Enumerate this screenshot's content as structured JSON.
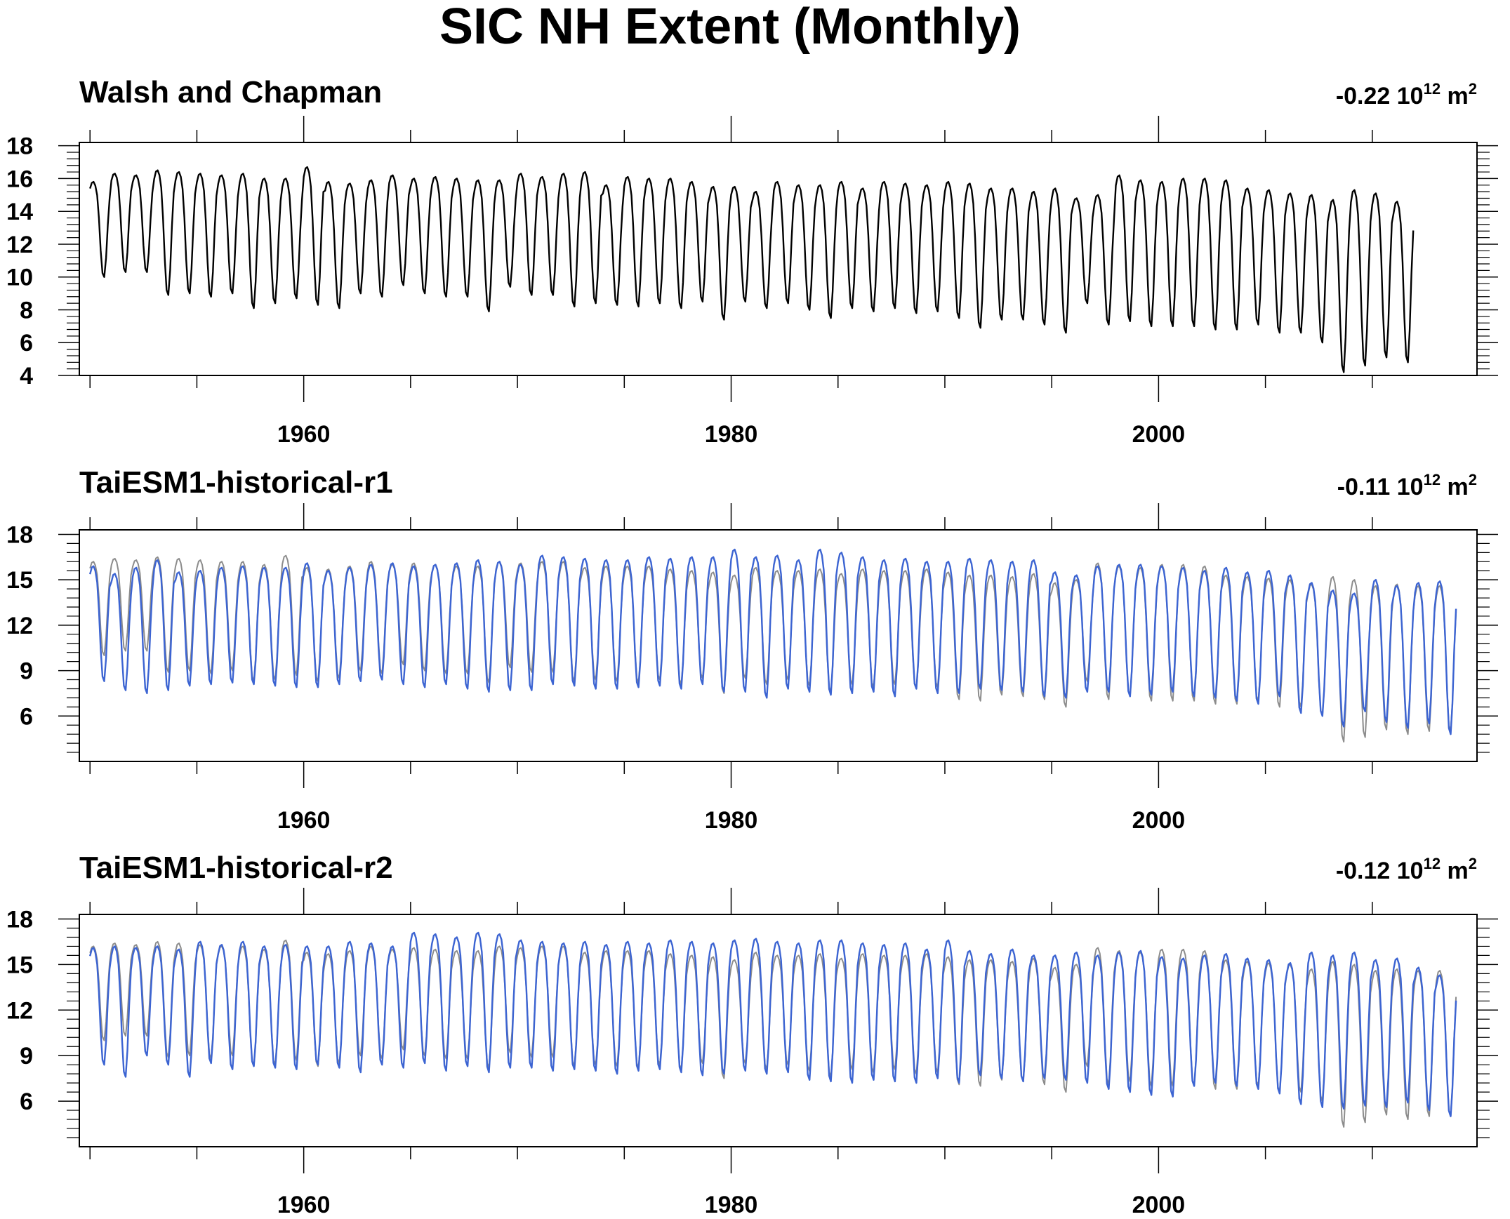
{
  "title": "SIC NH Extent (Monthly)",
  "colors": {
    "obs": "#000000",
    "ref": "#8c8c8c",
    "model": "#3c64d2"
  },
  "chart_data": [
    {
      "type": "line",
      "panel_title": "Walsh and Chapman",
      "trend": {
        "value": "-0.22",
        "base": "10",
        "exp": "12",
        "unit": "m",
        "unit_exp": "2"
      },
      "xlim": [
        1949.5,
        2014.9
      ],
      "ylim": [
        4,
        18.2
      ],
      "yticks": [
        4,
        6,
        8,
        10,
        12,
        14,
        16,
        18
      ],
      "xticks": [
        1960,
        1980,
        2000
      ],
      "series": [
        {
          "role": "obs",
          "x_start": 1950,
          "x_end": 2014,
          "max": [
            15.8,
            16.3,
            16.2,
            16.5,
            16.4,
            16.3,
            16.2,
            16.3,
            16.0,
            16.0,
            16.7,
            15.8,
            15.7,
            15.9,
            16.2,
            16.0,
            16.1,
            16.0,
            15.9,
            15.9,
            16.3,
            16.1,
            16.3,
            16.4,
            15.6,
            16.1,
            16.0,
            16.0,
            15.8,
            15.5,
            15.5,
            15.2,
            15.8,
            15.6,
            15.6,
            15.8,
            15.4,
            15.8,
            15.7,
            15.6,
            15.8,
            15.7,
            15.4,
            15.4,
            15.2,
            15.4,
            14.8,
            15.0,
            16.2,
            15.9,
            15.8,
            16.0,
            16.0,
            15.9,
            15.4,
            15.3,
            15.1,
            15.0,
            14.7,
            15.3,
            15.1,
            14.6
          ],
          "min": [
            10.0,
            10.3,
            10.3,
            8.9,
            9.0,
            8.8,
            9.0,
            8.1,
            8.4,
            8.7,
            8.3,
            8.1,
            9.0,
            8.8,
            9.5,
            9.0,
            8.8,
            8.8,
            7.9,
            9.4,
            8.9,
            8.9,
            8.2,
            8.4,
            8.3,
            8.2,
            8.4,
            8.1,
            8.5,
            7.4,
            8.5,
            8.1,
            8.4,
            8.0,
            7.5,
            8.1,
            7.9,
            8.1,
            7.8,
            7.9,
            7.5,
            6.9,
            7.4,
            7.4,
            7.1,
            6.6,
            8.4,
            7.1,
            7.3,
            7.0,
            7.0,
            7.0,
            6.8,
            6.8,
            7.1,
            6.6,
            6.6,
            6.0,
            4.2,
            4.6,
            5.1,
            4.8
          ]
        }
      ]
    },
    {
      "type": "line",
      "panel_title": "TaiESM1-historical-r1",
      "trend": {
        "value": "-0.11",
        "base": "10",
        "exp": "12",
        "unit": "m",
        "unit_exp": "2"
      },
      "xlim": [
        1949.5,
        2014.9
      ],
      "ylim": [
        3,
        18.3
      ],
      "yticks": [
        6,
        9,
        12,
        15,
        18
      ],
      "xticks": [
        1960,
        1980,
        2000
      ],
      "series": [
        {
          "role": "ref",
          "x_start": 1950,
          "x_end": 2014,
          "max": [
            16.2,
            16.4,
            16.3,
            16.5,
            16.4,
            16.3,
            16.2,
            16.2,
            16.0,
            16.6,
            15.8,
            15.7,
            15.9,
            16.2,
            16.0,
            16.1,
            16.0,
            15.9,
            15.9,
            16.2,
            16.1,
            16.2,
            16.2,
            15.8,
            15.9,
            15.9,
            15.9,
            15.7,
            15.6,
            15.5,
            15.3,
            15.8,
            15.6,
            15.6,
            15.7,
            15.4,
            15.7,
            15.6,
            15.6,
            15.7,
            15.5,
            15.3,
            15.3,
            15.2,
            15.4,
            14.8,
            15.0,
            16.1,
            15.9,
            15.8,
            16.0,
            16.0,
            15.9,
            15.3,
            15.2,
            15.1,
            15.0,
            14.7,
            15.2,
            15.0,
            14.6,
            14.7,
            14.6,
            14.6
          ],
          "min": [
            10.0,
            10.3,
            10.3,
            8.9,
            9.0,
            8.8,
            9.0,
            8.3,
            8.4,
            8.7,
            8.3,
            8.5,
            9.0,
            8.8,
            9.4,
            9.0,
            8.8,
            8.8,
            8.2,
            9.2,
            8.9,
            8.9,
            8.3,
            8.4,
            8.3,
            8.2,
            8.4,
            8.1,
            8.5,
            7.5,
            8.5,
            8.1,
            8.4,
            8.0,
            7.6,
            8.1,
            7.9,
            8.1,
            7.8,
            7.9,
            7.1,
            7.0,
            7.4,
            7.3,
            7.1,
            6.6,
            8.3,
            7.1,
            7.3,
            7.0,
            7.0,
            7.0,
            6.8,
            6.8,
            7.0,
            6.6,
            6.6,
            6.0,
            4.3,
            4.6,
            5.1,
            4.8,
            5.0,
            5.0
          ]
        },
        {
          "role": "model",
          "x_start": 1950,
          "x_end": 2014,
          "max": [
            15.9,
            15.4,
            15.8,
            16.3,
            15.5,
            15.6,
            15.8,
            15.9,
            15.8,
            15.8,
            16.1,
            15.6,
            15.8,
            16.0,
            16.1,
            15.9,
            16.0,
            16.1,
            16.3,
            16.2,
            16.0,
            16.6,
            16.5,
            16.4,
            16.3,
            16.3,
            16.5,
            16.4,
            16.5,
            16.5,
            17.0,
            16.5,
            16.6,
            16.3,
            17.0,
            16.8,
            16.5,
            16.3,
            16.4,
            16.2,
            16.2,
            16.4,
            16.3,
            16.2,
            16.3,
            15.5,
            15.3,
            15.9,
            16.0,
            16.0,
            15.9,
            15.8,
            15.6,
            15.8,
            15.5,
            15.6,
            15.3,
            14.8,
            14.3,
            14.1,
            15.0,
            14.6,
            14.8,
            14.9
          ],
          "min": [
            8.3,
            7.7,
            7.5,
            7.7,
            8.0,
            8.1,
            8.2,
            8.1,
            8.0,
            7.9,
            7.9,
            8.1,
            8.3,
            8.4,
            8.1,
            7.9,
            8.1,
            7.8,
            7.6,
            7.7,
            7.7,
            8.1,
            8.0,
            7.8,
            7.8,
            7.9,
            8.0,
            7.8,
            8.1,
            7.6,
            7.6,
            7.2,
            7.8,
            7.6,
            7.4,
            7.5,
            7.6,
            7.3,
            7.8,
            7.5,
            7.5,
            7.8,
            7.7,
            7.6,
            7.3,
            7.2,
            7.6,
            7.6,
            7.3,
            7.4,
            7.6,
            7.3,
            7.2,
            7.0,
            6.8,
            7.3,
            6.2,
            6.0,
            5.3,
            6.3,
            5.6,
            5.2,
            5.5,
            4.8
          ]
        }
      ]
    },
    {
      "type": "line",
      "panel_title": "TaiESM1-historical-r2",
      "trend": {
        "value": "-0.12",
        "base": "10",
        "exp": "12",
        "unit": "m",
        "unit_exp": "2"
      },
      "xlim": [
        1949.5,
        2014.9
      ],
      "ylim": [
        3,
        18.3
      ],
      "yticks": [
        6,
        9,
        12,
        15,
        18
      ],
      "xticks": [
        1960,
        1980,
        2000
      ],
      "series": [
        {
          "role": "ref",
          "x_start": 1950,
          "x_end": 2014,
          "max": [
            16.2,
            16.4,
            16.3,
            16.5,
            16.4,
            16.3,
            16.2,
            16.2,
            16.0,
            16.6,
            15.8,
            15.7,
            15.9,
            16.2,
            16.0,
            16.1,
            16.0,
            15.9,
            15.9,
            16.2,
            16.1,
            16.2,
            16.2,
            15.8,
            15.9,
            15.9,
            15.9,
            15.7,
            15.6,
            15.5,
            15.3,
            15.8,
            15.6,
            15.6,
            15.7,
            15.4,
            15.7,
            15.6,
            15.6,
            15.7,
            15.5,
            15.3,
            15.3,
            15.2,
            15.4,
            14.8,
            15.0,
            16.1,
            15.9,
            15.8,
            16.0,
            16.0,
            15.9,
            15.3,
            15.2,
            15.1,
            15.0,
            14.7,
            15.2,
            15.0,
            14.6,
            14.7,
            14.6,
            14.6
          ],
          "min": [
            10.0,
            10.3,
            10.3,
            8.9,
            9.0,
            8.8,
            9.0,
            8.3,
            8.4,
            8.7,
            8.3,
            8.5,
            9.0,
            8.8,
            9.4,
            9.0,
            8.8,
            8.8,
            8.2,
            9.2,
            8.9,
            8.9,
            8.3,
            8.4,
            8.3,
            8.2,
            8.4,
            8.1,
            8.5,
            7.5,
            8.5,
            8.1,
            8.4,
            8.0,
            7.6,
            8.1,
            7.9,
            8.1,
            7.8,
            7.9,
            7.1,
            7.0,
            7.4,
            7.3,
            7.1,
            6.6,
            8.3,
            7.1,
            7.3,
            7.0,
            7.0,
            7.0,
            6.8,
            6.8,
            7.0,
            6.6,
            6.6,
            6.0,
            4.3,
            4.6,
            5.1,
            4.8,
            5.0,
            5.0
          ]
        },
        {
          "role": "model",
          "x_start": 1950,
          "x_end": 2014,
          "max": [
            16.1,
            16.2,
            16.1,
            16.2,
            16.0,
            16.5,
            16.3,
            16.5,
            16.2,
            16.3,
            16.2,
            16.2,
            16.5,
            16.4,
            16.2,
            17.1,
            17.0,
            16.8,
            17.1,
            17.0,
            16.6,
            16.5,
            16.4,
            16.5,
            16.3,
            16.5,
            16.4,
            16.6,
            16.5,
            16.4,
            16.6,
            16.7,
            16.5,
            16.4,
            16.6,
            16.6,
            16.4,
            16.3,
            16.4,
            16.0,
            16.6,
            15.9,
            15.7,
            16.0,
            15.6,
            15.6,
            15.8,
            15.6,
            15.8,
            15.9,
            15.5,
            15.4,
            15.6,
            15.7,
            15.4,
            15.3,
            15.1,
            15.8,
            15.6,
            15.8,
            15.3,
            15.4,
            14.8,
            14.3
          ],
          "min": [
            8.4,
            7.6,
            9.0,
            8.4,
            7.6,
            8.5,
            8.1,
            8.3,
            8.2,
            8.1,
            8.4,
            8.2,
            7.9,
            8.4,
            8.2,
            8.5,
            8.0,
            8.3,
            7.9,
            8.2,
            8.2,
            8.0,
            8.1,
            8.0,
            7.8,
            8.0,
            8.1,
            7.9,
            7.7,
            7.8,
            8.0,
            7.8,
            7.9,
            7.4,
            7.3,
            7.2,
            7.4,
            7.3,
            7.2,
            7.5,
            7.2,
            7.7,
            7.5,
            7.3,
            7.5,
            7.4,
            7.2,
            6.8,
            6.6,
            6.4,
            6.3,
            7.0,
            7.2,
            7.0,
            6.8,
            6.5,
            5.8,
            5.6,
            5.5,
            5.7,
            5.6,
            5.9,
            5.4,
            5.0
          ]
        }
      ]
    }
  ]
}
